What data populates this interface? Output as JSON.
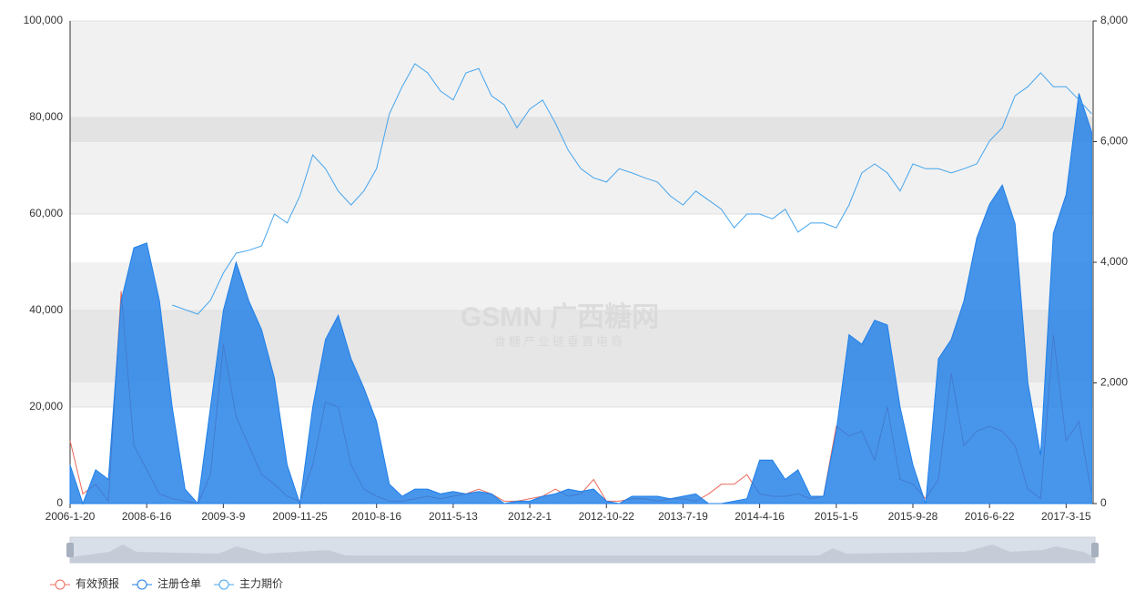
{
  "chart_data": {
    "type": "line",
    "watermark": {
      "title": "GSMN 广西糖网",
      "subtitle": "食糖产业链垂直电商"
    },
    "categories": [
      "2006-1-20",
      null,
      null,
      null,
      null,
      null,
      "2008-6-16",
      null,
      null,
      null,
      null,
      null,
      "2009-3-9",
      null,
      null,
      null,
      null,
      null,
      "2009-11-25",
      null,
      null,
      null,
      null,
      null,
      "2010-8-16",
      null,
      null,
      null,
      null,
      null,
      "2011-5-13",
      null,
      null,
      null,
      null,
      null,
      "2012-2-1",
      null,
      null,
      null,
      null,
      null,
      "2012-10-22",
      null,
      null,
      null,
      null,
      null,
      "2013-7-19",
      null,
      null,
      null,
      null,
      null,
      "2014-4-16",
      null,
      null,
      null,
      null,
      null,
      "2015-1-5",
      null,
      null,
      null,
      null,
      null,
      "2015-9-28",
      null,
      null,
      null,
      null,
      null,
      "2016-6-22",
      null,
      null,
      null,
      null,
      null,
      "2017-3-15",
      null,
      null
    ],
    "ylim": [
      0,
      100000
    ],
    "yticks": [
      0,
      {
        "value": 20000,
        "label": "20,000"
      },
      {
        "value": 40000,
        "label": "40,000"
      },
      {
        "value": 60000,
        "label": "60,000"
      },
      {
        "value": 80000,
        "label": "80,000"
      },
      {
        "value": 100000,
        "label": "100,000"
      }
    ],
    "y2lim": [
      0,
      8000
    ],
    "y2ticks": [
      0,
      {
        "value": 2000,
        "label": "2,000"
      },
      {
        "value": 4000,
        "label": "4,000"
      },
      {
        "value": 6000,
        "label": "6,000"
      },
      {
        "value": 8000,
        "label": "8,000"
      }
    ],
    "grid": true,
    "legend": "bottom-left",
    "series": [
      {
        "name": "有效预报",
        "color": "#ec6b5a",
        "values": [
          13000,
          2000,
          4000,
          500,
          44000,
          12000,
          7000,
          2000,
          1000,
          500,
          0,
          6000,
          33000,
          18000,
          12000,
          6000,
          4000,
          1500,
          500,
          8000,
          21000,
          20000,
          8000,
          3000,
          1500,
          500,
          500,
          1000,
          1500,
          1000,
          1500,
          2000,
          3000,
          2000,
          500,
          500,
          1000,
          1500,
          3000,
          1500,
          2000,
          5000,
          500,
          500,
          1000,
          1000,
          500,
          1000,
          1000,
          500,
          2000,
          4000,
          4000,
          6000,
          2000,
          1500,
          1500,
          2000,
          1000,
          1500,
          16000,
          14000,
          15000,
          9000,
          20000,
          5000,
          4000,
          1000,
          5000,
          27000,
          12000,
          15000,
          16000,
          15000,
          12000,
          3000,
          1000,
          35000,
          13000,
          17000,
          2000
        ]
      },
      {
        "name": "注册仓单",
        "color": "#1f7fe8",
        "area": true,
        "values": [
          8000,
          0,
          7000,
          5000,
          42000,
          53000,
          54000,
          42000,
          20000,
          3000,
          0,
          20000,
          40000,
          50000,
          42000,
          36000,
          26000,
          8000,
          0,
          20000,
          34000,
          39000,
          30000,
          24000,
          17000,
          4000,
          1500,
          3000,
          3000,
          2000,
          2500,
          2000,
          2500,
          2000,
          0,
          500,
          500,
          1500,
          2000,
          3000,
          2500,
          3000,
          500,
          0,
          1500,
          1500,
          1500,
          1000,
          1500,
          2000,
          0,
          0,
          500,
          1000,
          9000,
          9000,
          5000,
          7000,
          1500,
          1500,
          15000,
          35000,
          33000,
          38000,
          37000,
          20000,
          8000,
          0,
          30000,
          34000,
          42000,
          55000,
          62000,
          66000,
          58000,
          25000,
          10000,
          56000,
          64000,
          85000,
          77000
        ]
      },
      {
        "name": "主力期价",
        "color": "#45a5ee",
        "axis": "y2",
        "values": [
          null,
          null,
          null,
          null,
          null,
          null,
          null,
          null,
          3290,
          3215,
          3140,
          3370,
          3820,
          4150,
          4200,
          4270,
          4800,
          4650,
          5100,
          5780,
          5550,
          5180,
          4950,
          5180,
          5550,
          6460,
          6910,
          7290,
          7140,
          6840,
          6690,
          7140,
          7210,
          6760,
          6610,
          6230,
          6540,
          6690,
          6310,
          5860,
          5550,
          5400,
          5330,
          5550,
          5480,
          5400,
          5330,
          5100,
          4950,
          5180,
          5030,
          4880,
          4570,
          4800,
          4800,
          4720,
          4880,
          4500,
          4650,
          4650,
          4570,
          4950,
          5480,
          5630,
          5480,
          5180,
          5630,
          5550,
          5550,
          5480,
          5550,
          5630,
          6010,
          6230,
          6760,
          6910,
          7140,
          6910,
          6910,
          6690,
          6460
        ]
      }
    ]
  }
}
